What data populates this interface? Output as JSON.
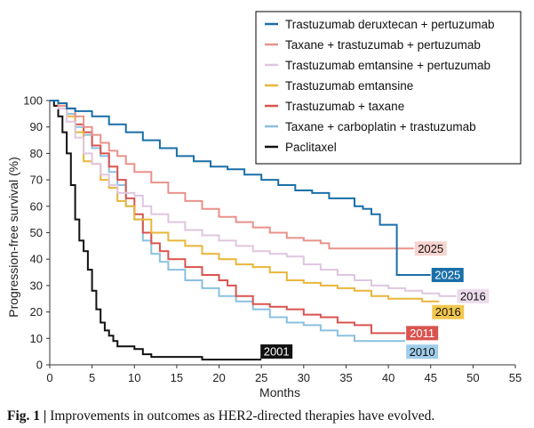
{
  "caption": {
    "label": "Fig. 1 | ",
    "text": "Improvements in outcomes as HER2-directed therapies have evolved."
  },
  "chart_data": {
    "type": "line",
    "title": "",
    "xlabel": "Months",
    "ylabel": "Progression-free survival (%)",
    "xlim": [
      0,
      55
    ],
    "ylim": [
      0,
      100
    ],
    "x_ticks": [
      0,
      5,
      10,
      15,
      20,
      25,
      30,
      35,
      40,
      45,
      50,
      55
    ],
    "y_ticks": [
      0,
      10,
      20,
      30,
      40,
      50,
      60,
      70,
      80,
      90,
      100
    ],
    "legend_position": "top-right",
    "series": [
      {
        "name": "Trastuzumab deruxtecan + pertuzumab",
        "color": "#1a6fa8",
        "end_label": "2025",
        "end_label_style": "filled",
        "points": [
          [
            0,
            100
          ],
          [
            1,
            99
          ],
          [
            2,
            97
          ],
          [
            3,
            96
          ],
          [
            5,
            94
          ],
          [
            7,
            91
          ],
          [
            9,
            88
          ],
          [
            11,
            85
          ],
          [
            13,
            82
          ],
          [
            15,
            79
          ],
          [
            17,
            77
          ],
          [
            19,
            75
          ],
          [
            21,
            74
          ],
          [
            23,
            72
          ],
          [
            25,
            70
          ],
          [
            27,
            68
          ],
          [
            29,
            66
          ],
          [
            31,
            65
          ],
          [
            33,
            63
          ],
          [
            35,
            63
          ],
          [
            36,
            60
          ],
          [
            37,
            59
          ],
          [
            38,
            57
          ],
          [
            39,
            53
          ],
          [
            41,
            52
          ],
          [
            41,
            34
          ],
          [
            45,
            34
          ]
        ]
      },
      {
        "name": "Taxane + trastuzumab + pertuzumab",
        "color": "#e8928a",
        "end_label": "2025",
        "end_label_style": "light",
        "points": [
          [
            0,
            100
          ],
          [
            1,
            98
          ],
          [
            2,
            97
          ],
          [
            3,
            94
          ],
          [
            4,
            90
          ],
          [
            5,
            87
          ],
          [
            6,
            84
          ],
          [
            7,
            81
          ],
          [
            8,
            79
          ],
          [
            9,
            76
          ],
          [
            10,
            73
          ],
          [
            12,
            69
          ],
          [
            14,
            65
          ],
          [
            16,
            62
          ],
          [
            18,
            59
          ],
          [
            20,
            56
          ],
          [
            22,
            54
          ],
          [
            24,
            52
          ],
          [
            26,
            50
          ],
          [
            28,
            48
          ],
          [
            30,
            47
          ],
          [
            32,
            46
          ],
          [
            33,
            44
          ],
          [
            35,
            44
          ],
          [
            37,
            44
          ],
          [
            39,
            44
          ],
          [
            41,
            44
          ],
          [
            43,
            44
          ]
        ]
      },
      {
        "name": "Trastuzumab emtansine + pertuzumab",
        "color": "#dfc6df",
        "end_label": "2016",
        "end_label_style": "light",
        "points": [
          [
            0,
            100
          ],
          [
            1,
            97
          ],
          [
            2,
            92
          ],
          [
            3,
            86
          ],
          [
            4,
            80
          ],
          [
            5,
            76
          ],
          [
            6,
            72
          ],
          [
            7,
            68
          ],
          [
            8,
            65
          ],
          [
            10,
            64
          ],
          [
            11,
            60
          ],
          [
            12,
            57
          ],
          [
            14,
            54
          ],
          [
            16,
            51
          ],
          [
            18,
            49
          ],
          [
            20,
            47
          ],
          [
            22,
            45
          ],
          [
            24,
            43
          ],
          [
            26,
            42
          ],
          [
            28,
            41
          ],
          [
            30,
            38
          ],
          [
            32,
            36
          ],
          [
            34,
            34
          ],
          [
            36,
            32
          ],
          [
            38,
            30
          ],
          [
            40,
            29
          ],
          [
            42,
            28
          ],
          [
            44,
            27
          ],
          [
            46,
            26
          ],
          [
            48,
            26
          ]
        ]
      },
      {
        "name": "Trastuzumab emtansine",
        "color": "#e8b63a",
        "end_label": "2016",
        "end_label_style": "light",
        "points": [
          [
            0,
            100
          ],
          [
            1,
            98
          ],
          [
            2,
            94
          ],
          [
            3,
            88
          ],
          [
            4,
            77
          ],
          [
            5,
            76
          ],
          [
            6,
            70
          ],
          [
            7,
            67
          ],
          [
            8,
            62
          ],
          [
            9,
            60
          ],
          [
            10,
            55
          ],
          [
            12,
            50
          ],
          [
            14,
            47
          ],
          [
            16,
            45
          ],
          [
            18,
            42
          ],
          [
            20,
            40
          ],
          [
            22,
            38
          ],
          [
            24,
            37
          ],
          [
            26,
            35
          ],
          [
            28,
            32
          ],
          [
            30,
            31
          ],
          [
            32,
            30
          ],
          [
            34,
            29
          ],
          [
            36,
            28
          ],
          [
            38,
            26
          ],
          [
            40,
            25
          ],
          [
            42,
            25
          ],
          [
            44,
            24
          ],
          [
            46,
            24
          ]
        ]
      },
      {
        "name": "Trastuzumab + taxane",
        "color": "#d9534f",
        "end_label": "2011",
        "end_label_style": "filled",
        "points": [
          [
            0,
            100
          ],
          [
            1,
            99
          ],
          [
            2,
            97
          ],
          [
            3,
            91
          ],
          [
            4,
            88
          ],
          [
            5,
            83
          ],
          [
            6,
            80
          ],
          [
            7,
            75
          ],
          [
            8,
            70
          ],
          [
            9,
            63
          ],
          [
            10,
            57
          ],
          [
            11,
            50
          ],
          [
            12,
            46
          ],
          [
            13,
            43
          ],
          [
            14,
            40
          ],
          [
            16,
            37
          ],
          [
            18,
            34
          ],
          [
            20,
            32
          ],
          [
            21,
            30
          ],
          [
            22,
            26
          ],
          [
            24,
            23
          ],
          [
            26,
            22
          ],
          [
            28,
            21
          ],
          [
            30,
            19
          ],
          [
            32,
            18
          ],
          [
            34,
            16
          ],
          [
            36,
            15
          ],
          [
            38,
            12
          ],
          [
            40,
            12
          ],
          [
            42,
            12
          ]
        ]
      },
      {
        "name": "Taxane + carboplatin + trastuzumab",
        "color": "#8ac0e0",
        "end_label": "2010",
        "end_label_style": "light",
        "points": [
          [
            0,
            100
          ],
          [
            1,
            98
          ],
          [
            2,
            95
          ],
          [
            3,
            90
          ],
          [
            4,
            87
          ],
          [
            5,
            82
          ],
          [
            6,
            79
          ],
          [
            7,
            73
          ],
          [
            8,
            68
          ],
          [
            9,
            60
          ],
          [
            10,
            55
          ],
          [
            11,
            47
          ],
          [
            12,
            42
          ],
          [
            13,
            39
          ],
          [
            14,
            36
          ],
          [
            16,
            32
          ],
          [
            18,
            29
          ],
          [
            20,
            26
          ],
          [
            22,
            24
          ],
          [
            24,
            21
          ],
          [
            26,
            18
          ],
          [
            28,
            16
          ],
          [
            30,
            15
          ],
          [
            32,
            13
          ],
          [
            34,
            11
          ],
          [
            36,
            9
          ],
          [
            38,
            9
          ],
          [
            40,
            9
          ],
          [
            42,
            9
          ]
        ]
      },
      {
        "name": "Paclitaxel",
        "color": "#111111",
        "end_label": "2001",
        "end_label_style": "filled",
        "points": [
          [
            0,
            100
          ],
          [
            0.5,
            98
          ],
          [
            1,
            94
          ],
          [
            1.5,
            88
          ],
          [
            2,
            80
          ],
          [
            2.5,
            68
          ],
          [
            3,
            55
          ],
          [
            3.5,
            47
          ],
          [
            4,
            43
          ],
          [
            4.5,
            36
          ],
          [
            5,
            28
          ],
          [
            5.5,
            21
          ],
          [
            6,
            16
          ],
          [
            6.5,
            13
          ],
          [
            7,
            11
          ],
          [
            7.5,
            9
          ],
          [
            8,
            7
          ],
          [
            9,
            7
          ],
          [
            10,
            6
          ],
          [
            11,
            4
          ],
          [
            12,
            3
          ],
          [
            14,
            3
          ],
          [
            16,
            3
          ],
          [
            18,
            2
          ],
          [
            20,
            2
          ],
          [
            22,
            2
          ],
          [
            25,
            2
          ]
        ]
      }
    ]
  }
}
